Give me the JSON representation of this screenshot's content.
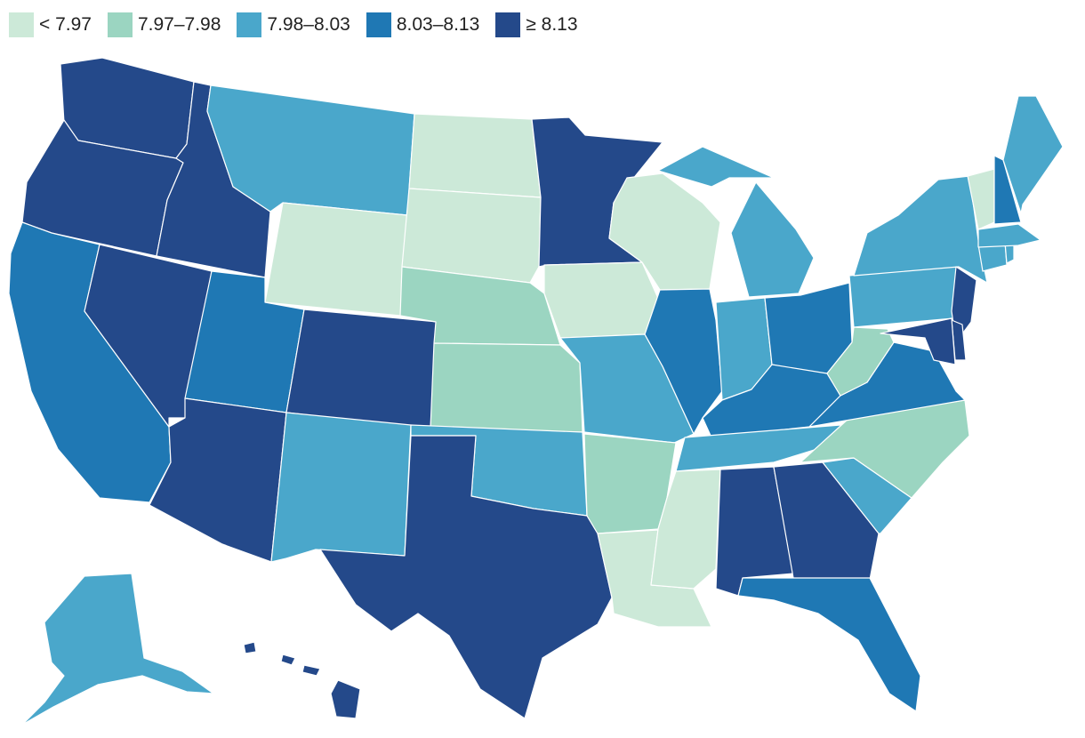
{
  "legend": {
    "items": [
      {
        "label": "< 7.97",
        "color": "#cce9d8"
      },
      {
        "label": "7.97–7.98",
        "color": "#9bd5c1"
      },
      {
        "label": "7.98–8.03",
        "color": "#4aa7cb"
      },
      {
        "label": "8.03–8.13",
        "color": "#1f78b4"
      },
      {
        "label": "≥ 8.13",
        "color": "#24498a"
      }
    ]
  },
  "map": {
    "regions": [
      {
        "id": "WA",
        "class": 4
      },
      {
        "id": "OR",
        "class": 4
      },
      {
        "id": "CA",
        "class": 3
      },
      {
        "id": "NV",
        "class": 4
      },
      {
        "id": "ID",
        "class": 4
      },
      {
        "id": "MT",
        "class": 2
      },
      {
        "id": "WY",
        "class": 0
      },
      {
        "id": "UT",
        "class": 3
      },
      {
        "id": "AZ",
        "class": 4
      },
      {
        "id": "CO",
        "class": 4
      },
      {
        "id": "NM",
        "class": 2
      },
      {
        "id": "ND",
        "class": 0
      },
      {
        "id": "SD",
        "class": 0
      },
      {
        "id": "NE",
        "class": 1
      },
      {
        "id": "KS",
        "class": 1
      },
      {
        "id": "OK",
        "class": 2
      },
      {
        "id": "TX",
        "class": 4
      },
      {
        "id": "MN",
        "class": 4
      },
      {
        "id": "IA",
        "class": 0
      },
      {
        "id": "MO",
        "class": 2
      },
      {
        "id": "AR",
        "class": 1
      },
      {
        "id": "LA",
        "class": 0
      },
      {
        "id": "WI",
        "class": 0
      },
      {
        "id": "IL",
        "class": 3
      },
      {
        "id": "MI",
        "class": 2
      },
      {
        "id": "IN",
        "class": 2
      },
      {
        "id": "OH",
        "class": 3
      },
      {
        "id": "KY",
        "class": 3
      },
      {
        "id": "TN",
        "class": 2
      },
      {
        "id": "MS",
        "class": 0
      },
      {
        "id": "AL",
        "class": 4
      },
      {
        "id": "GA",
        "class": 4
      },
      {
        "id": "FL",
        "class": 3
      },
      {
        "id": "SC",
        "class": 2
      },
      {
        "id": "NC",
        "class": 1
      },
      {
        "id": "VA",
        "class": 3
      },
      {
        "id": "WV",
        "class": 1
      },
      {
        "id": "PA",
        "class": 2
      },
      {
        "id": "NY",
        "class": 2
      },
      {
        "id": "NJ",
        "class": 4
      },
      {
        "id": "DE",
        "class": 4
      },
      {
        "id": "MD",
        "class": 4
      },
      {
        "id": "CT",
        "class": 2
      },
      {
        "id": "RI",
        "class": 2
      },
      {
        "id": "MA",
        "class": 2
      },
      {
        "id": "VT",
        "class": 0
      },
      {
        "id": "NH",
        "class": 3
      },
      {
        "id": "ME",
        "class": 2
      },
      {
        "id": "AK",
        "class": 2
      },
      {
        "id": "HI",
        "class": 4
      }
    ]
  }
}
